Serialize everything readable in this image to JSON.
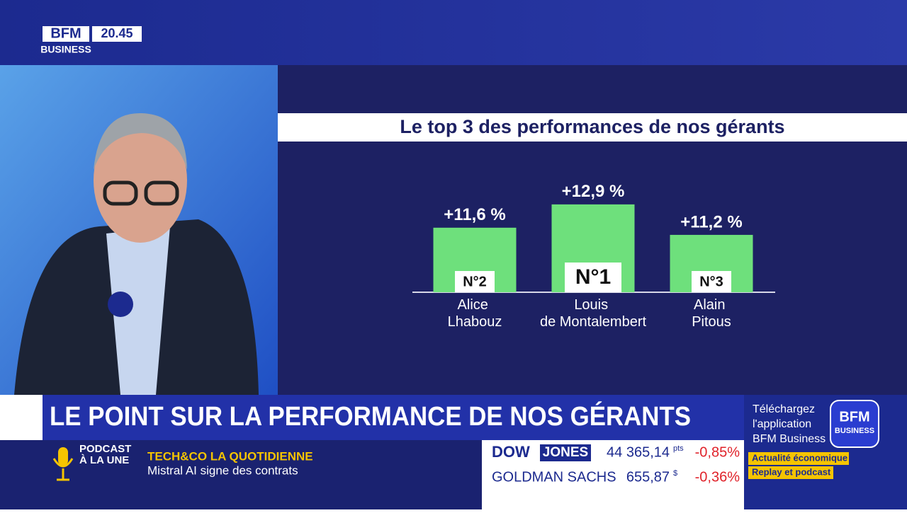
{
  "channel": {
    "logo_top": "BFM",
    "logo_bottom": "BUSINESS",
    "time": "20.45"
  },
  "chart_data": {
    "type": "bar",
    "title": "Le top 3 des performances de nos gérants",
    "categories": [
      "Alice Lhabouz",
      "Louis de Montalembert",
      "Alain Pitous"
    ],
    "values": [
      11.6,
      12.9,
      11.2
    ],
    "value_labels": [
      "+11,6 %",
      "+12,9 %",
      "+11,2 %"
    ],
    "ranks": [
      "N°2",
      "N°1",
      "N°3"
    ],
    "color": "#6ee07c",
    "ylim": [
      8,
      14
    ]
  },
  "headline": "LE POINT SUR LA PERFORMANCE DE NOS GÉRANTS",
  "podcast": {
    "line1": "PODCAST",
    "line2": "À LA UNE",
    "show": "TECH&CO LA QUOTIDIENNE",
    "story": "Mistral AI signe des contrats"
  },
  "ticker": [
    {
      "name": "DOW",
      "name2": "JONES",
      "value": "44 365,14",
      "unit": "pts",
      "change": "-0,85%"
    },
    {
      "name": "GOLDMAN SACHS",
      "value": "655,87",
      "unit": "$",
      "change": "-0,36%"
    }
  ],
  "promo": {
    "line1": "Téléchargez",
    "line2": "l'application",
    "line3": "BFM Business",
    "logo_top": "BFM",
    "logo_bottom": "BUSINESS",
    "tag1": "Actualité économique",
    "tag2": "Replay et podcast"
  }
}
